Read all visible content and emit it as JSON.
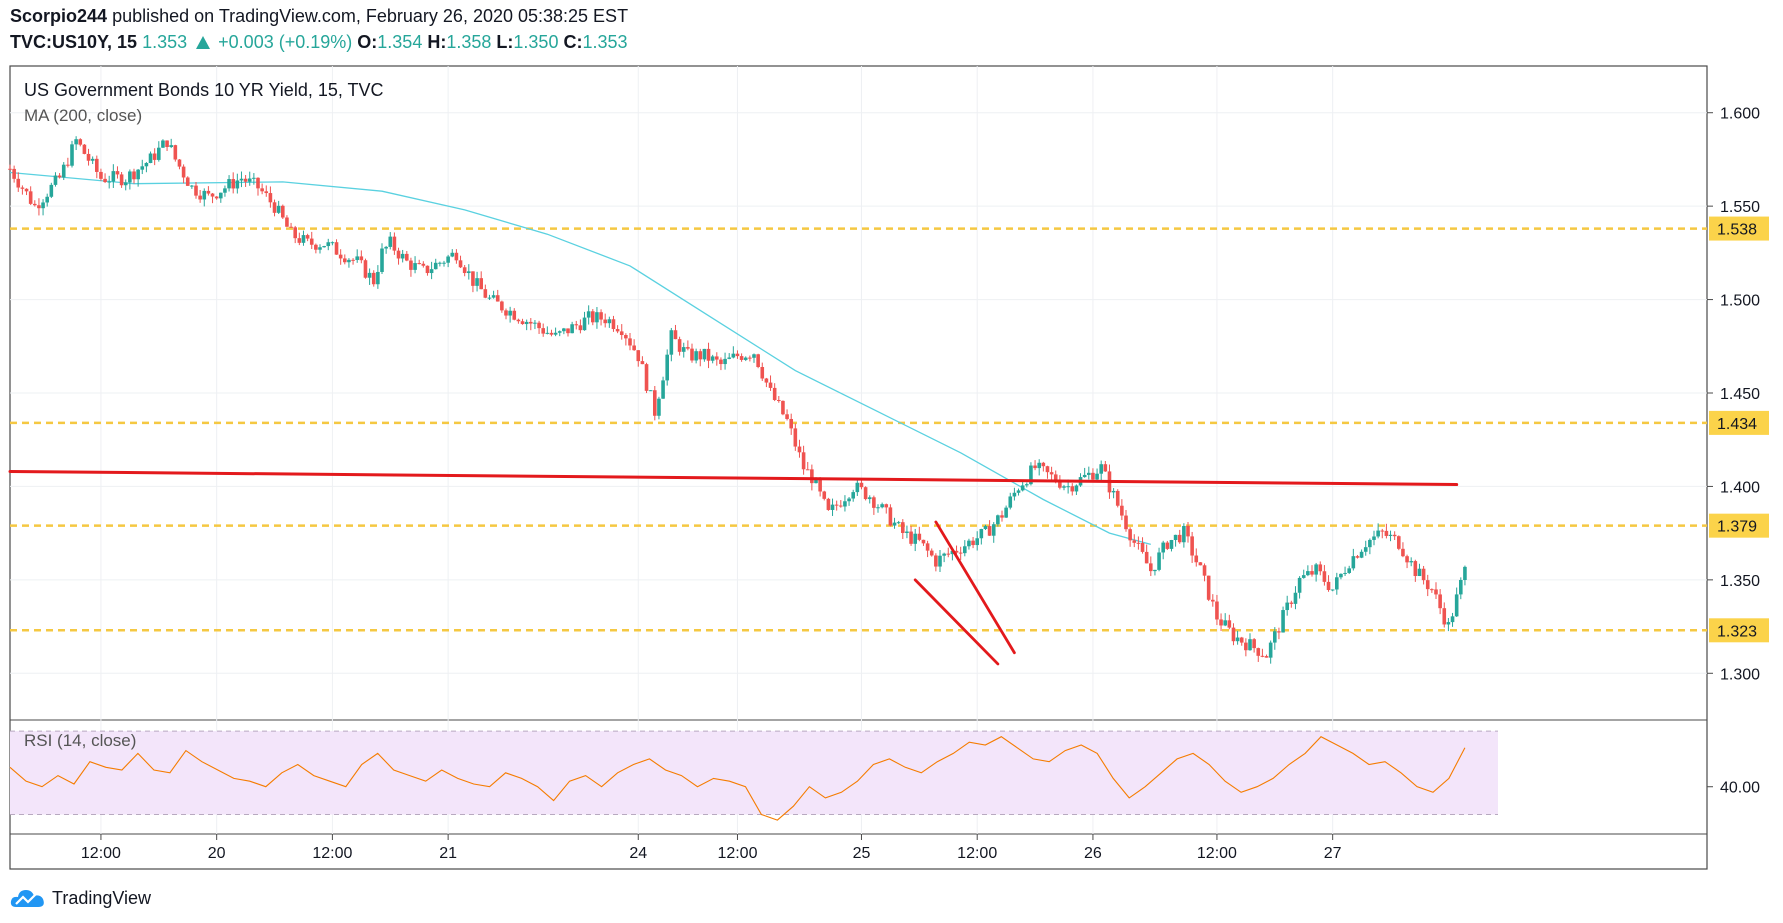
{
  "header": {
    "publisher": "Scorpio244",
    "published_text": "published on TradingView.com, February 26, 2020 05:38:25 EST",
    "symbol": "TVC:US10Y, 15",
    "last": "1.353",
    "change": "+0.003 (+0.19%)",
    "o_label": "O:",
    "o_value": "1.354",
    "h_label": "H:",
    "h_value": "1.358",
    "l_label": "L:",
    "l_value": "1.350",
    "c_label": "C:",
    "c_value": "1.353"
  },
  "legend": {
    "title": "US Government Bonds 10 YR Yield, 15, TVC",
    "ma": "MA (200, close)",
    "rsi": "RSI (14, close)"
  },
  "footer": {
    "brand": "TradingView"
  },
  "colors": {
    "up": "#26a69a",
    "down": "#ef5350",
    "ma": "#5ad1e0",
    "rsi": "#f57c00",
    "level": "#f5c842",
    "trend": "#e3191c",
    "rsi_band": "#f3e5fa",
    "axis_label_bg": "#fbd34a"
  },
  "chart_data": [
    {
      "type": "candlestick",
      "series": [
        {
          "name": "US Government Bonds 10 YR Yield, 15, TVC",
          "path": [
            [
              0,
              1.57
            ],
            [
              3,
              1.55
            ],
            [
              6,
              1.565
            ],
            [
              8,
              1.585
            ],
            [
              11,
              1.565
            ],
            [
              14,
              1.565
            ],
            [
              17,
              1.575
            ],
            [
              19,
              1.585
            ],
            [
              20,
              1.575
            ],
            [
              22,
              1.56
            ],
            [
              24,
              1.555
            ],
            [
              26,
              1.56
            ],
            [
              28,
              1.565
            ],
            [
              30,
              1.56
            ],
            [
              32,
              1.55
            ],
            [
              34,
              1.535
            ],
            [
              36,
              1.53
            ],
            [
              38,
              1.53
            ],
            [
              40,
              1.525
            ],
            [
              42,
              1.52
            ],
            [
              44,
              1.51
            ],
            [
              45,
              1.525
            ],
            [
              46,
              1.53
            ],
            [
              48,
              1.52
            ],
            [
              50,
              1.515
            ],
            [
              52,
              1.52
            ],
            [
              54,
              1.525
            ],
            [
              56,
              1.51
            ],
            [
              58,
              1.5
            ],
            [
              60,
              1.495
            ],
            [
              62,
              1.49
            ],
            [
              64,
              1.485
            ],
            [
              66,
              1.48
            ],
            [
              68,
              1.485
            ],
            [
              70,
              1.49
            ],
            [
              72,
              1.49
            ],
            [
              74,
              1.485
            ],
            [
              76,
              1.47
            ],
            [
              78,
              1.44
            ],
            [
              80,
              1.48
            ],
            [
              82,
              1.47
            ],
            [
              84,
              1.47
            ],
            [
              86,
              1.465
            ],
            [
              88,
              1.47
            ],
            [
              90,
              1.472
            ],
            [
              92,
              1.45
            ],
            [
              94,
              1.435
            ],
            [
              96,
              1.41
            ],
            [
              97,
              1.405
            ],
            [
              99,
              1.385
            ],
            [
              102,
              1.4
            ],
            [
              104,
              1.395
            ],
            [
              106,
              1.385
            ],
            [
              108,
              1.375
            ],
            [
              110,
              1.37
            ],
            [
              112,
              1.36
            ],
            [
              114,
              1.365
            ],
            [
              116,
              1.37
            ],
            [
              118,
              1.375
            ],
            [
              120,
              1.385
            ],
            [
              122,
              1.4
            ],
            [
              124,
              1.41
            ],
            [
              126,
              1.405
            ],
            [
              128,
              1.4
            ],
            [
              130,
              1.405
            ],
            [
              132,
              1.41
            ],
            [
              134,
              1.39
            ],
            [
              136,
              1.37
            ],
            [
              138,
              1.355
            ],
            [
              140,
              1.37
            ],
            [
              142,
              1.375
            ],
            [
              144,
              1.355
            ],
            [
              146,
              1.33
            ],
            [
              148,
              1.32
            ],
            [
              150,
              1.315
            ],
            [
              152,
              1.31
            ],
            [
              154,
              1.33
            ],
            [
              156,
              1.35
            ],
            [
              158,
              1.355
            ],
            [
              160,
              1.345
            ],
            [
              162,
              1.36
            ],
            [
              164,
              1.37
            ],
            [
              166,
              1.375
            ],
            [
              168,
              1.37
            ],
            [
              170,
              1.355
            ],
            [
              172,
              1.345
            ],
            [
              174,
              1.325
            ],
            [
              176,
              1.355
            ]
          ]
        }
      ],
      "y_axis": {
        "range": [
          1.275,
          1.625
        ],
        "ticks": [
          "1.300",
          "1.350",
          "1.400",
          "1.450",
          "1.500",
          "1.550",
          "1.600"
        ]
      },
      "x_axis": {
        "range": [
          0,
          180
        ],
        "ticks": [
          {
            "x": 11,
            "label": "12:00"
          },
          {
            "x": 25,
            "label": "20"
          },
          {
            "x": 39,
            "label": "12:00"
          },
          {
            "x": 53,
            "label": "21"
          },
          {
            "x": 76,
            "label": "24"
          },
          {
            "x": 88,
            "label": "12:00"
          },
          {
            "x": 103,
            "label": "25"
          },
          {
            "x": 117,
            "label": "12:00"
          },
          {
            "x": 131,
            "label": "26"
          },
          {
            "x": 146,
            "label": "12:00"
          },
          {
            "x": 160,
            "label": "27"
          }
        ]
      },
      "levels": [
        {
          "label": "1.538",
          "value": 1.538
        },
        {
          "label": "1.434",
          "value": 1.434
        },
        {
          "label": "1.379",
          "value": 1.379
        },
        {
          "label": "1.323",
          "value": 1.323
        }
      ],
      "trendlines": [
        {
          "x1": 0,
          "y1": 1.408,
          "x2": 175,
          "y2": 1.401
        },
        {
          "x1": 109.5,
          "y1": 1.35,
          "x2": 119.5,
          "y2": 1.305
        },
        {
          "x1": 112,
          "y1": 1.381,
          "x2": 121.5,
          "y2": 1.311
        }
      ],
      "ma": {
        "name": "MA (200, close)",
        "points": [
          [
            0,
            1.568
          ],
          [
            15,
            1.562
          ],
          [
            33,
            1.563
          ],
          [
            45,
            1.558
          ],
          [
            55,
            1.548
          ],
          [
            65,
            1.535
          ],
          [
            75,
            1.518
          ],
          [
            85,
            1.49
          ],
          [
            95,
            1.462
          ],
          [
            105,
            1.44
          ],
          [
            115,
            1.418
          ],
          [
            125,
            1.393
          ],
          [
            133,
            1.375
          ],
          [
            138,
            1.369
          ]
        ]
      },
      "last_price": 1.353
    },
    {
      "type": "line",
      "series": [
        {
          "name": "RSI (14, close)",
          "values": [
            47,
            42,
            40,
            44,
            41,
            49,
            47,
            46,
            52,
            46,
            45,
            53,
            49,
            46,
            43,
            42,
            40,
            45,
            48,
            44,
            42,
            40,
            48,
            52,
            46,
            44,
            42,
            46,
            43,
            41,
            40,
            45,
            43,
            40,
            35,
            42,
            44,
            40,
            45,
            48,
            50,
            46,
            44,
            40,
            43,
            42,
            40,
            30,
            28,
            33,
            40,
            36,
            38,
            42,
            48,
            50,
            47,
            45,
            49,
            52,
            56,
            55,
            58,
            54,
            50,
            49,
            53,
            55,
            52,
            43,
            36,
            40,
            45,
            50,
            52,
            48,
            42,
            38,
            40,
            43,
            48,
            52,
            58,
            55,
            52,
            48,
            49,
            45,
            40,
            38,
            43,
            54
          ]
        }
      ],
      "x_range": [
        0,
        176
      ],
      "y_axis": {
        "range": [
          23,
          64
        ],
        "ticks": [
          "40.00"
        ]
      },
      "band": [
        30,
        60
      ]
    }
  ]
}
